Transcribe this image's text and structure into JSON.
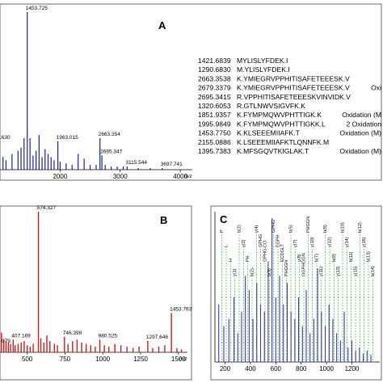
{
  "chart_data": [
    {
      "type": "bar",
      "panel": "A",
      "color": "#1a1aa6",
      "xlim": [
        1000,
        4200
      ],
      "ylim": [
        0,
        100
      ],
      "xticks": [
        2000,
        3000,
        4000
      ],
      "xunit": "m/z",
      "x": [
        1050,
        1100,
        1200,
        1300,
        1350,
        1400,
        1453.725,
        1500,
        1550,
        1600,
        1650,
        1700,
        1750,
        1800,
        1850,
        1900,
        1963.015,
        2000,
        2100,
        2200,
        2300,
        2400,
        2500,
        2600,
        2663.354,
        2695.347,
        2750,
        2850,
        2950,
        3050,
        3115.544,
        3300,
        3500,
        3697.741
      ],
      "y": [
        8,
        6,
        10,
        12,
        14,
        20,
        100,
        20,
        9,
        12,
        22,
        8,
        13,
        10,
        8,
        6,
        18,
        5,
        4,
        3,
        10,
        7,
        3,
        3,
        20,
        9,
        3,
        2,
        2,
        2,
        2,
        1,
        1,
        1
      ],
      "labels": [
        {
          "x": 1453.725,
          "y": 100,
          "text": "1453.725"
        },
        {
          "x": 1963.015,
          "y": 18,
          "text": "1963.015"
        },
        {
          "x": 2663.354,
          "y": 20,
          "text": "2663.354"
        },
        {
          "x": 2695.347,
          "y": 9,
          "text": "2695.347"
        },
        {
          "x": 3115.544,
          "y": 2,
          "text": "3115.544"
        },
        {
          "x": 3697.741,
          "y": 1,
          "text": "3697.741"
        }
      ],
      "partial_label": ".630"
    },
    {
      "type": "bar",
      "panel": "B",
      "color": "#d11a1a",
      "xlim": [
        320,
        1560
      ],
      "ylim": [
        0,
        100
      ],
      "xticks": [
        500,
        750,
        1000,
        1250,
        1500
      ],
      "xunit": "m/z",
      "x": [
        330,
        345,
        360,
        375,
        390,
        407.169,
        420,
        440,
        460,
        480,
        500,
        520,
        540,
        574.327,
        590,
        610,
        630,
        650,
        680,
        700,
        746.399,
        770,
        800,
        830,
        860,
        890,
        920,
        950,
        980.525,
        1010,
        1040,
        1080,
        1120,
        1160,
        1200,
        1240,
        1297.646,
        1330,
        1370,
        1410,
        1453.763,
        1490,
        1520
      ],
      "y": [
        14,
        9,
        8,
        7,
        6,
        9,
        5,
        6,
        7,
        8,
        5,
        4,
        6,
        100,
        10,
        7,
        12,
        8,
        6,
        5,
        11,
        6,
        8,
        9,
        7,
        6,
        5,
        4,
        9,
        5,
        4,
        6,
        5,
        4,
        3,
        4,
        8,
        3,
        4,
        5,
        28,
        3,
        2
      ],
      "labels": [
        {
          "x": 407.169,
          "y": 9,
          "text": "407.169"
        },
        {
          "x": 574.327,
          "y": 100,
          "text": "574.327"
        },
        {
          "x": 746.399,
          "y": 11,
          "text": "746.399"
        },
        {
          "x": 980.525,
          "y": 9,
          "text": "980.525"
        },
        {
          "x": 1297.646,
          "y": 8,
          "text": "1297.646"
        },
        {
          "x": 1453.763,
          "y": 28,
          "text": "1453.763"
        }
      ],
      "partial_label": "079"
    },
    {
      "type": "bar",
      "panel": "C",
      "color": "#3a3aaa",
      "xlim": [
        120,
        1420
      ],
      "ylim": [
        0,
        100
      ],
      "xticks": [
        200,
        400,
        600,
        800,
        1000,
        1200
      ],
      "x": [
        150,
        190,
        230,
        270,
        300,
        330,
        360,
        390,
        420,
        450,
        480,
        510,
        540,
        570,
        600,
        630,
        660,
        690,
        720,
        750,
        780,
        810,
        840,
        870,
        900,
        930,
        960,
        990,
        1020,
        1050,
        1080,
        1110,
        1140,
        1170,
        1200,
        1230,
        1260,
        1290,
        1320,
        1350
      ],
      "y": [
        40,
        25,
        30,
        45,
        20,
        35,
        60,
        50,
        30,
        55,
        40,
        35,
        70,
        100,
        45,
        60,
        40,
        55,
        35,
        30,
        45,
        25,
        50,
        20,
        30,
        65,
        35,
        25,
        40,
        30,
        20,
        15,
        35,
        10,
        15,
        8,
        10,
        6,
        8,
        5
      ],
      "ion_annotations": [
        "P",
        "L",
        "H",
        "y(1)",
        "b(2)",
        "y(2)",
        "PH",
        "b(2)-",
        "y(4)",
        "GPHG",
        "GPHG-CO",
        "b(3)",
        "GPHG",
        "EGPH",
        "ECDGLT",
        "PHGGN",
        "b(5)",
        "y(7)",
        "y(8)",
        "GGPHGGN",
        "PHGGN",
        "y(10)",
        "b(7)",
        "y(11)",
        "b(8)",
        "y(12)",
        "b(9)",
        "y(13)",
        "b(10)",
        "y(14)",
        "b(11)",
        "y(15)",
        "b(12)",
        "y(16)",
        "b(13)",
        "b(14)"
      ]
    }
  ],
  "panels": {
    "a_label": "A",
    "b_label": "B",
    "c_label": "C"
  },
  "table": {
    "rows": [
      {
        "mass": "1421.6839",
        "peptide": "MYLISLYFDEK.I"
      },
      {
        "mass": "1290.6830",
        "peptide": "M.YLISLYFDEK.I"
      },
      {
        "mass": "2663.3538",
        "peptide": "K.YMIEGRVPPHITISAFETEEESK.V"
      },
      {
        "mass": "2679.3379",
        "peptide": "K.YMIEGRVPPHITISAFETEEESK.V",
        "note": "Oxi"
      },
      {
        "mass": "2695.3415",
        "peptide": "R.VPPHITISAFETEEESKVINVIDK.V"
      },
      {
        "mass": "1320.6053",
        "peptide": "R.GTLNWVSIGVFK.K"
      },
      {
        "mass": "1851.9357",
        "peptide": "K.FYMPMQWVPHTTIGK.K",
        "note": "Oxidation (M"
      },
      {
        "mass": "1995.9849",
        "peptide": "K.FYMPMQWVPHTTIGKK.L",
        "note": "2 Oxidation"
      },
      {
        "mass": "1453.7750",
        "peptide": "K.KLSEEEMIIAFK.T",
        "note": "Oxidation (M)"
      },
      {
        "mass": "2155.0886",
        "peptide": "K.LSEEEMIIAFKTLQNNFK.M"
      },
      {
        "mass": "1395.7383",
        "peptide": "K.MFSGQVTKIGLAK.T",
        "note": "Oxidation (M)"
      }
    ]
  }
}
